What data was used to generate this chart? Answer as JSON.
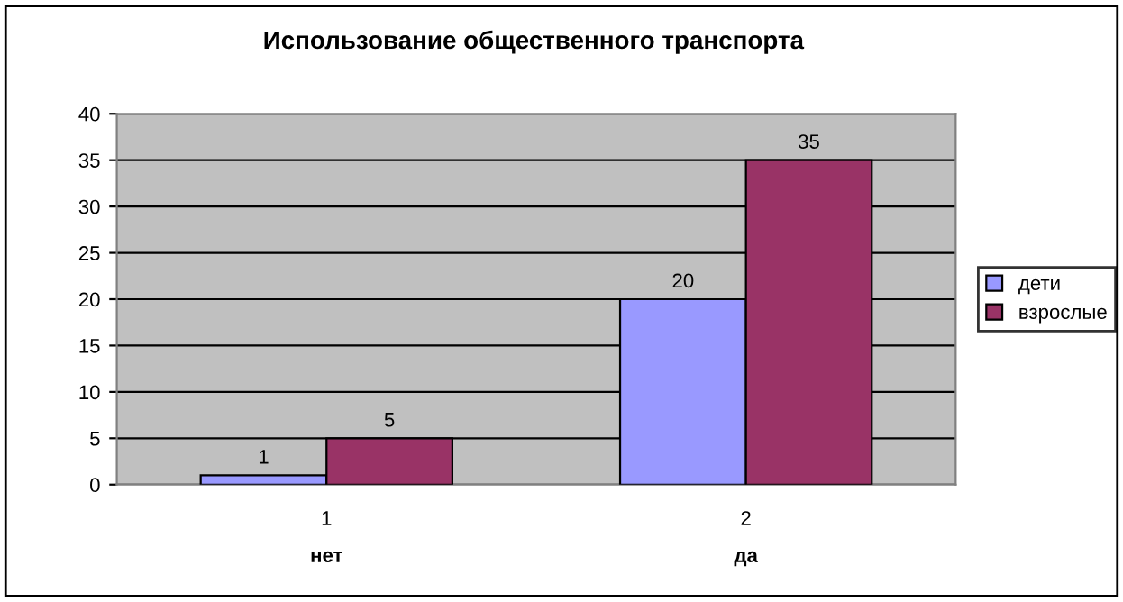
{
  "chart_data": {
    "type": "bar",
    "title": "Использование общественного транспорта",
    "categories": [
      "1\nнет",
      "2\nда"
    ],
    "series": [
      {
        "name": "дети",
        "color": "#9999ff",
        "values": [
          1,
          20
        ]
      },
      {
        "name": "взрослые",
        "color": "#993366",
        "values": [
          5,
          35
        ]
      }
    ],
    "ylim": [
      0,
      40
    ],
    "yticks": [
      0,
      5,
      10,
      15,
      20,
      25,
      30,
      35,
      40
    ],
    "grid": "y",
    "legend": "right",
    "data_labels": true
  }
}
